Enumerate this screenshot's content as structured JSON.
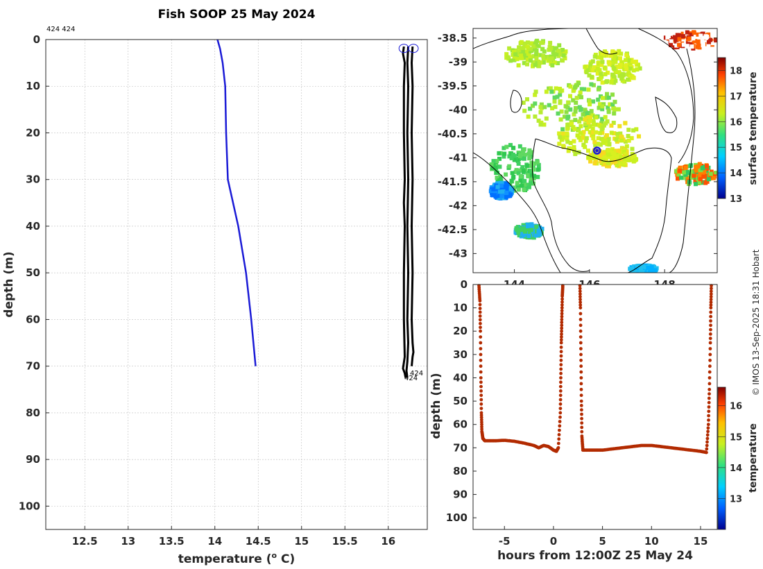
{
  "title": "Fish SOOP 25 May 2024",
  "copyright": "© IMOS 13-Sep-2025 18:31 Hobart",
  "colors": {
    "blue_profile": "#1a1ad6",
    "black_profile": "#000000",
    "scatter": "#b22a00",
    "marker": "#1a1ad6"
  },
  "chart_data": [
    {
      "type": "line",
      "name": "profile",
      "xlabel": "temperature (o C)",
      "xlabel_main": "temperature (",
      "xlabel_sup": "o",
      "xlabel_end": " C)",
      "ylabel": "depth (m)",
      "xlim": [
        12.05,
        16.45
      ],
      "ylim": [
        105,
        0
      ],
      "xticks": [
        12.5,
        13,
        13.5,
        14,
        14.5,
        15,
        15.5,
        16
      ],
      "xtick_labels": [
        "12.5",
        "13",
        "13.5",
        "14",
        "14.5",
        "15",
        "15.5",
        "16"
      ],
      "yticks": [
        0,
        10,
        20,
        30,
        40,
        50,
        60,
        70,
        80,
        90,
        100
      ],
      "ytick_labels": [
        "0",
        "10",
        "20",
        "30",
        "40",
        "50",
        "60",
        "70",
        "80",
        "90",
        "100"
      ],
      "top_annotation": "424 424",
      "bottom_annotation_1": "424",
      "bottom_annotation_2": "424",
      "series": [
        {
          "name": "mean profile",
          "color": "#1a1ad6",
          "x": [
            14.03,
            14.06,
            14.09,
            14.12,
            14.13,
            14.15,
            14.27,
            14.36,
            14.42,
            14.47
          ],
          "y": [
            0,
            2,
            5,
            10,
            20,
            30,
            40,
            50,
            60,
            70
          ]
        },
        {
          "name": "cast 1",
          "color": "#000000",
          "x": [
            16.18,
            16.17,
            16.19,
            16.18,
            16.18,
            16.19,
            16.18,
            16.19,
            16.18,
            16.18,
            16.19,
            16.17,
            16.19,
            16.2
          ],
          "y": [
            1.5,
            3,
            5,
            10,
            20,
            30,
            35,
            40,
            50,
            60,
            68,
            70.5,
            71.5,
            72.5
          ]
        },
        {
          "name": "cast 2",
          "color": "#000000",
          "x": [
            16.23,
            16.22,
            16.23,
            16.22,
            16.23,
            16.22,
            16.23,
            16.22,
            16.23,
            16.22,
            16.21,
            16.22
          ],
          "y": [
            1.5,
            5,
            10,
            20,
            30,
            40,
            50,
            60,
            65,
            69,
            71,
            72.5
          ]
        },
        {
          "name": "cast 3",
          "color": "#000000",
          "x": [
            16.28,
            16.27,
            16.28,
            16.27,
            16.28,
            16.27,
            16.28,
            16.27,
            16.28,
            16.29,
            16.28,
            16.27
          ],
          "y": [
            1.5,
            5,
            10,
            20,
            30,
            40,
            50,
            60,
            65,
            67,
            68,
            70
          ]
        }
      ],
      "surface_markers": [
        {
          "x": 16.18,
          "y": 1
        },
        {
          "x": 16.29,
          "y": 1
        }
      ]
    },
    {
      "type": "heatmap",
      "name": "sst-map",
      "colorbar_label": "surface temperature",
      "lat_lim": [
        -43.4,
        -38.3
      ],
      "lon_lim": [
        142.9,
        149.4
      ],
      "yticks": [
        -38.5,
        -39,
        -39.5,
        -40,
        -40.5,
        -41,
        -41.5,
        -42,
        -42.5,
        -43
      ],
      "ytick_labels": [
        "-38.5",
        "-39",
        "-39.5",
        "-40",
        "-40.5",
        "-41",
        "-41.5",
        "-42",
        "-42.5",
        "-43"
      ],
      "xticks": [
        144,
        146,
        148
      ],
      "xtick_labels": [
        "144",
        "146",
        "148"
      ],
      "colorbar_range": [
        13,
        18.5
      ],
      "colorbar_ticks": [
        13,
        14,
        15,
        16,
        17,
        18
      ],
      "colorbar_tick_labels": [
        "13",
        "14",
        "15",
        "16",
        "17",
        "18"
      ],
      "station": {
        "lon": 146.2,
        "lat": -40.85
      }
    },
    {
      "type": "scatter",
      "name": "time-depth",
      "xlabel": "hours from 12:00Z 25 May 24",
      "ylabel": "depth (m)",
      "colorbar_label": "temperature",
      "xlim": [
        -8.2,
        16.7
      ],
      "ylim": [
        105,
        0
      ],
      "xticks": [
        -5,
        0,
        5,
        10,
        15
      ],
      "xtick_labels": [
        "-5",
        "0",
        "5",
        "10",
        "15"
      ],
      "yticks": [
        0,
        10,
        20,
        30,
        40,
        50,
        60,
        70,
        80,
        90,
        100
      ],
      "ytick_labels": [
        "0",
        "10",
        "20",
        "30",
        "40",
        "50",
        "60",
        "70",
        "80",
        "90",
        "100"
      ],
      "colorbar_range": [
        12,
        16.6
      ],
      "colorbar_ticks": [
        13,
        14,
        15,
        16
      ],
      "colorbar_tick_labels": [
        "13",
        "14",
        "15",
        "16"
      ],
      "casts": [
        {
          "x": [
            -7.6,
            -7.5,
            -7.45,
            -7.4,
            -7.35,
            -7.3,
            -7.2,
            -7.0,
            -6,
            -5,
            -4,
            -3,
            -2,
            -1.5,
            -1,
            -0.5,
            0,
            0.3,
            0.5,
            0.7,
            0.75,
            0.8,
            0.85,
            0.9,
            0.95
          ],
          "y": [
            0.5,
            7,
            20,
            40,
            55,
            63,
            66,
            67,
            67,
            66.8,
            67.2,
            68,
            69,
            70,
            69,
            69.5,
            71,
            71.5,
            70,
            55,
            40,
            25,
            15,
            5,
            0.5
          ]
        },
        {
          "x": [
            2.7,
            2.75,
            2.8,
            2.85,
            2.9,
            3.0,
            4,
            5,
            6,
            7,
            8,
            9,
            10,
            11,
            12,
            13,
            14,
            15,
            15.6,
            15.8,
            15.9,
            16.0,
            16.05,
            16.1
          ],
          "y": [
            0.5,
            10,
            30,
            50,
            65,
            71,
            71,
            71,
            70.5,
            70,
            69.5,
            69,
            69,
            69.5,
            70,
            70.5,
            71,
            71.5,
            72,
            60,
            45,
            25,
            10,
            0.5
          ]
        }
      ]
    }
  ]
}
